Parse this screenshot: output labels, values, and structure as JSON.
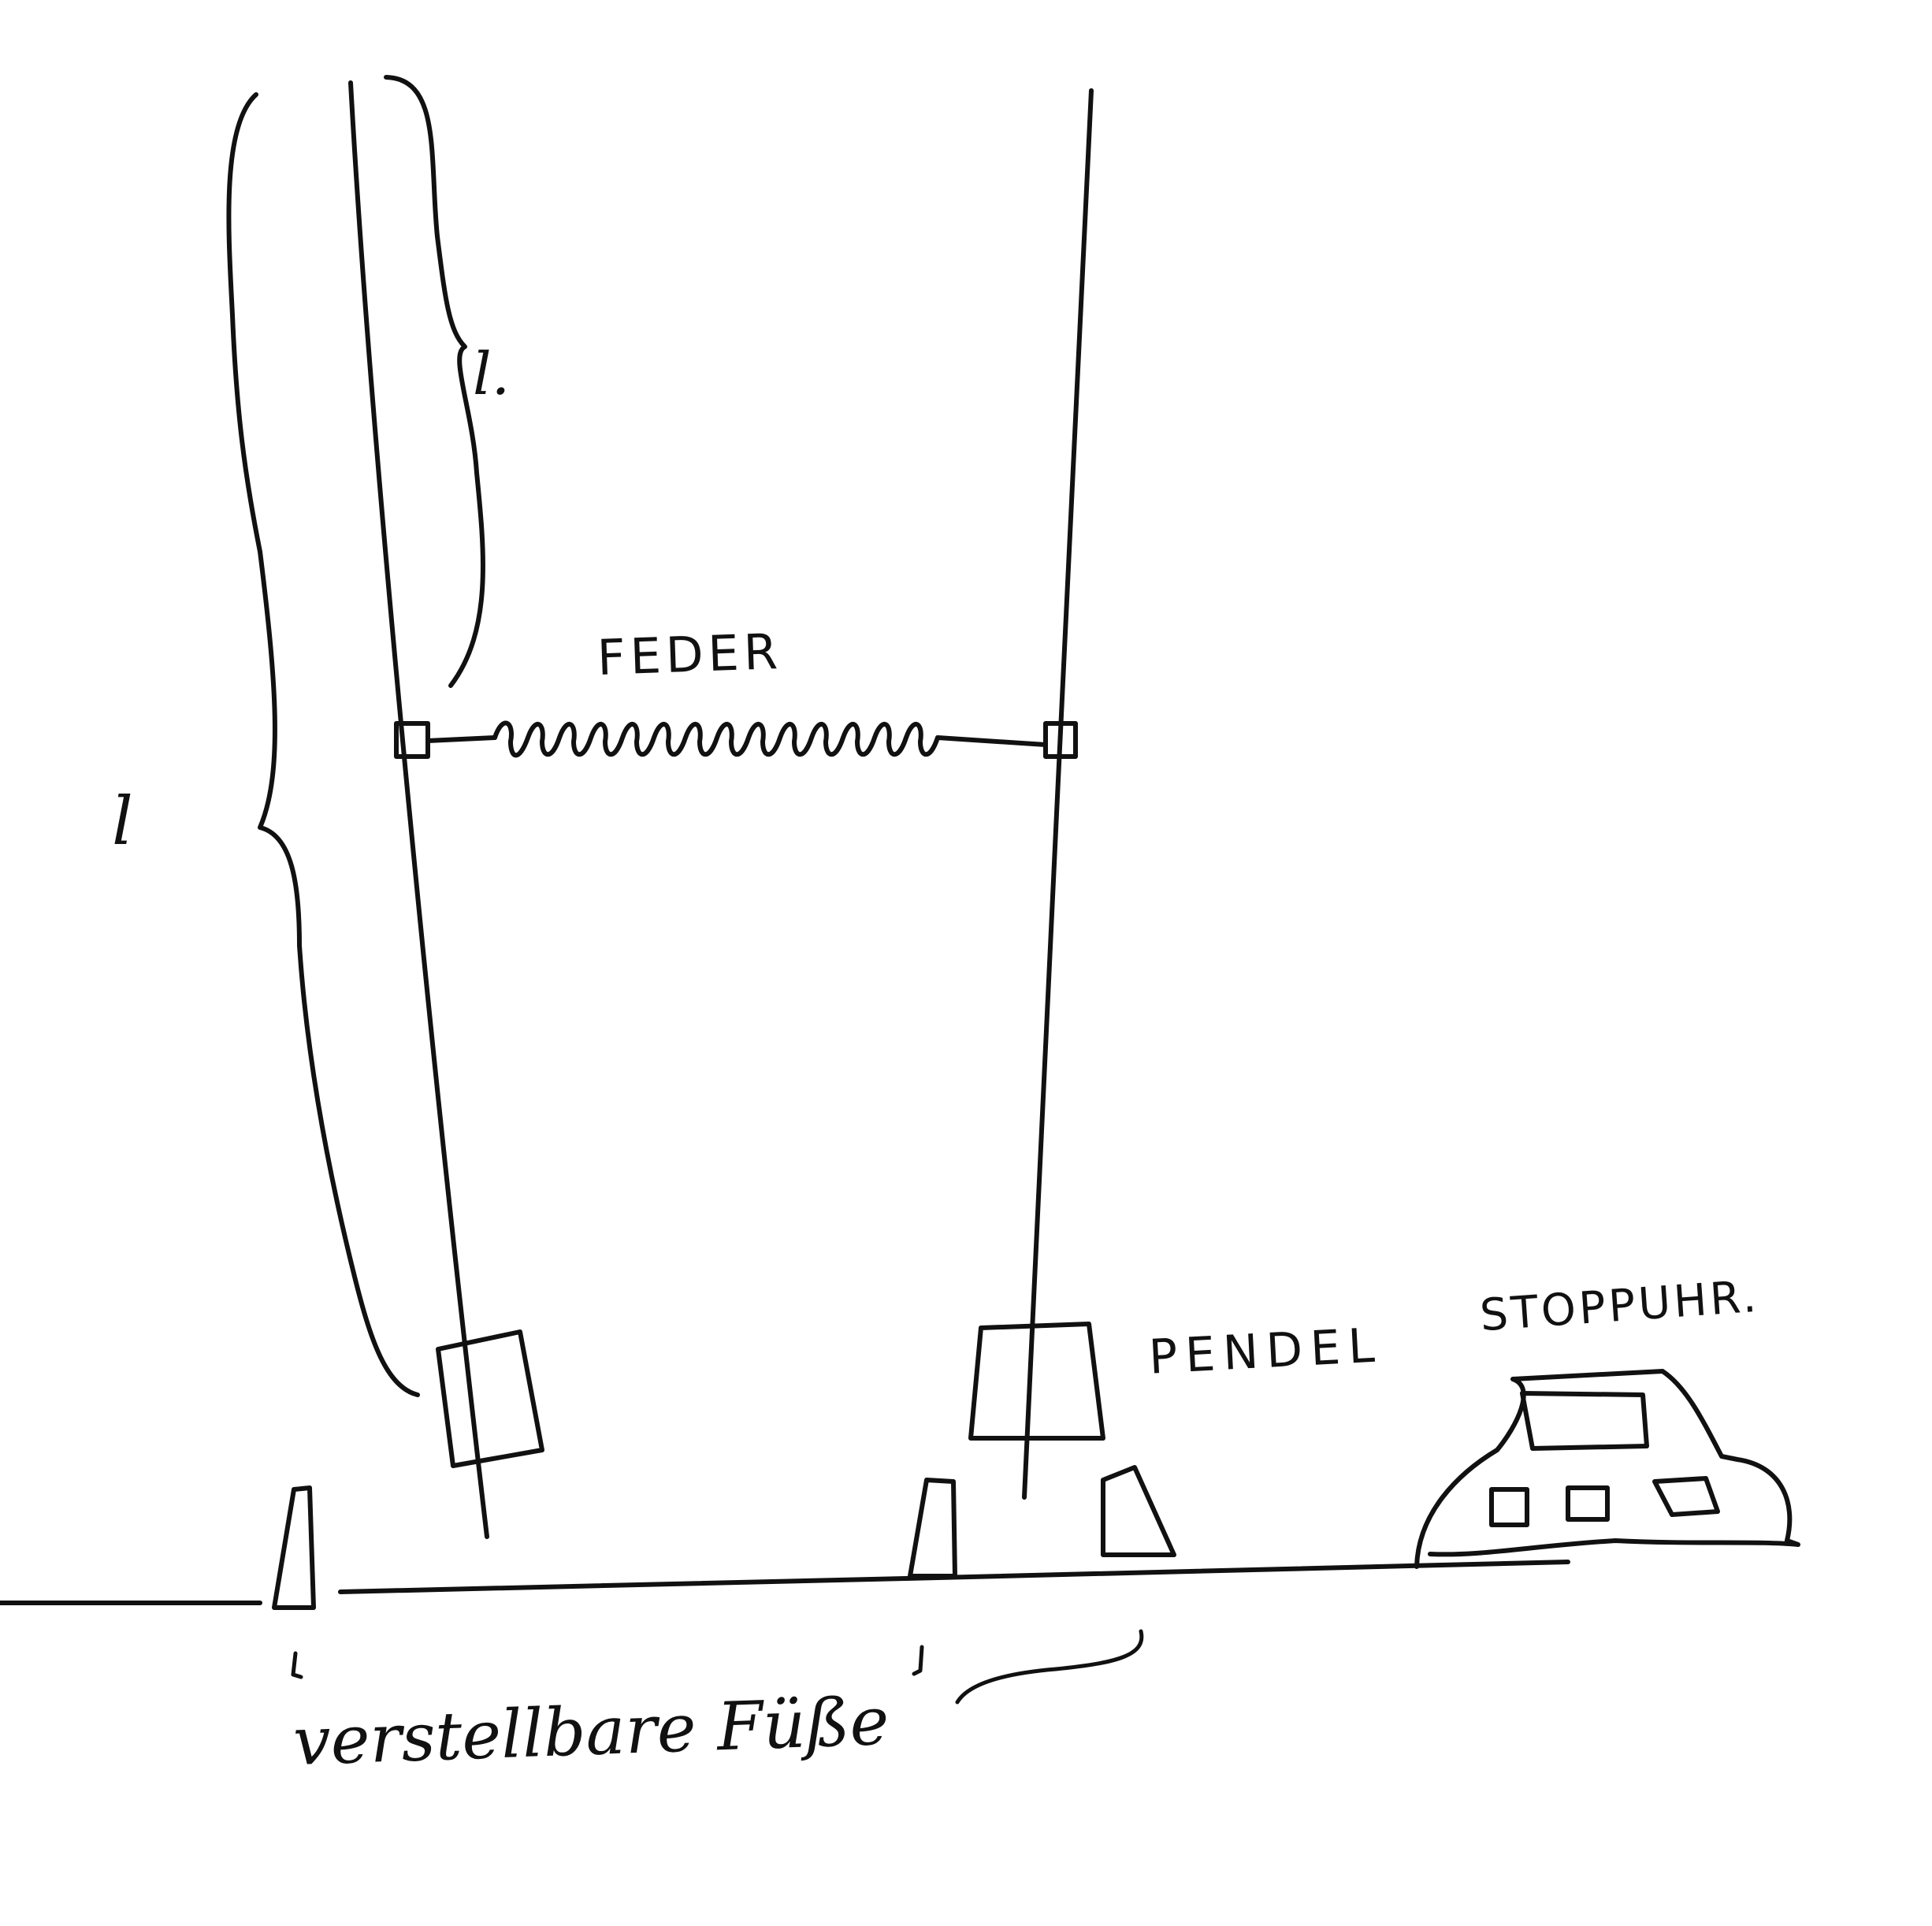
{
  "labels": {
    "spring": "FEDER",
    "pendulum": "PENDEL",
    "stopwatch": "STOPPUHR.",
    "length_short": "l.",
    "length_long": "l",
    "adjustable_feet": "verstellbare Füße"
  },
  "colors": {
    "ink": "#111111",
    "paper": "#ffffff"
  }
}
